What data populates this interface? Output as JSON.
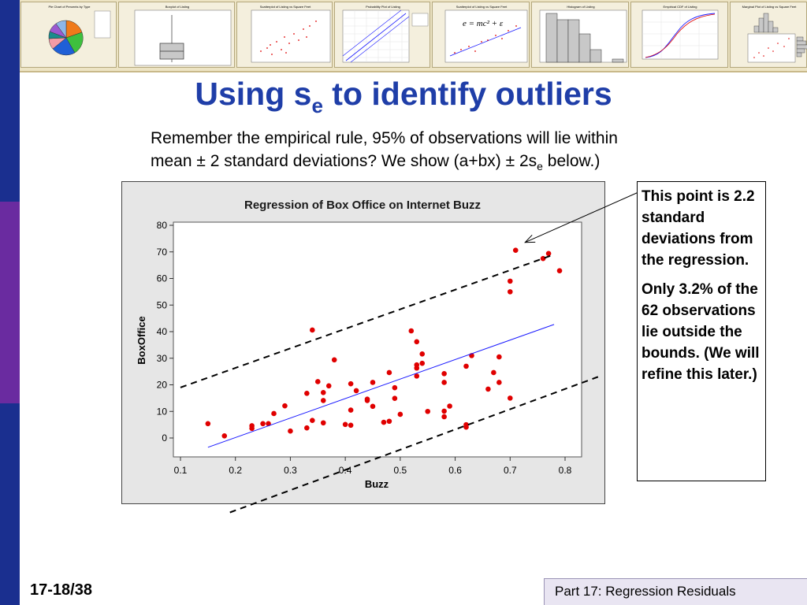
{
  "title": {
    "main": "Using s",
    "subscript": "e",
    "rest": " to identify outliers"
  },
  "body": {
    "line1": "Remember the empirical rule, 95% of observations will lie within",
    "line2_pre": "mean ± 2 standard deviations?  We show (a+bx) ± 2s",
    "line2_sub": "e",
    "line2_post": " below.)"
  },
  "callout": {
    "para1": "This point is 2.2 standard deviations from the regression.",
    "para2": "Only 3.2% of the 62 observations lie outside the bounds. (We will refine this later.)"
  },
  "slide_number": "17-18/38",
  "footer": "Part 17: Regression Residuals",
  "colors": {
    "title": "#1f3ea8",
    "points": "#e00000",
    "regression_line": "#1a1aff",
    "sidebar": [
      "#1a2f8f",
      "#6a2ba0",
      "#1a2f8f"
    ]
  },
  "chart_data": {
    "type": "scatter",
    "title": "Regression of Box Office on Internet Buzz",
    "xlabel": "Buzz",
    "ylabel": "BoxOffice",
    "xlim": [
      0.1,
      0.8
    ],
    "ylim": [
      0,
      80
    ],
    "xticks": [
      "0.1",
      "0.2",
      "0.3",
      "0.4",
      "0.5",
      "0.6",
      "0.7",
      "0.8"
    ],
    "yticks": [
      "0",
      "10",
      "20",
      "30",
      "40",
      "50",
      "60",
      "70",
      "80"
    ],
    "grid": false,
    "series": [
      {
        "points": [
          [
            0.15,
            5.4
          ],
          [
            0.18,
            0.8
          ],
          [
            0.23,
            3.6
          ],
          [
            0.23,
            4.6
          ],
          [
            0.25,
            5.4
          ],
          [
            0.26,
            5.4
          ],
          [
            0.27,
            9.2
          ],
          [
            0.29,
            12.1
          ],
          [
            0.3,
            2.6
          ],
          [
            0.33,
            3.8
          ],
          [
            0.33,
            16.8
          ],
          [
            0.34,
            6.6
          ],
          [
            0.34,
            40.6
          ],
          [
            0.35,
            21.2
          ],
          [
            0.36,
            5.7
          ],
          [
            0.36,
            14.1
          ],
          [
            0.36,
            17.1
          ],
          [
            0.37,
            19.6
          ],
          [
            0.38,
            29.4
          ],
          [
            0.4,
            5.1
          ],
          [
            0.41,
            10.5
          ],
          [
            0.41,
            4.8
          ],
          [
            0.41,
            20.4
          ],
          [
            0.42,
            17.8
          ],
          [
            0.44,
            14.6
          ],
          [
            0.44,
            14.1
          ],
          [
            0.45,
            20.9
          ],
          [
            0.45,
            11.9
          ],
          [
            0.47,
            5.9
          ],
          [
            0.48,
            6.3
          ],
          [
            0.48,
            24.6
          ],
          [
            0.49,
            14.9
          ],
          [
            0.49,
            18.9
          ],
          [
            0.5,
            8.9
          ],
          [
            0.52,
            40.3
          ],
          [
            0.53,
            36.2
          ],
          [
            0.53,
            27.5
          ],
          [
            0.53,
            26.3
          ],
          [
            0.53,
            23.3
          ],
          [
            0.54,
            28.1
          ],
          [
            0.54,
            31.6
          ],
          [
            0.55,
            10.0
          ],
          [
            0.58,
            24.2
          ],
          [
            0.58,
            20.9
          ],
          [
            0.58,
            10.1
          ],
          [
            0.58,
            8.0
          ],
          [
            0.59,
            12.0
          ],
          [
            0.62,
            27.0
          ],
          [
            0.62,
            5.0
          ],
          [
            0.62,
            4.1
          ],
          [
            0.63,
            31.0
          ],
          [
            0.66,
            18.4
          ],
          [
            0.67,
            24.6
          ],
          [
            0.68,
            20.9
          ],
          [
            0.68,
            30.5
          ],
          [
            0.7,
            59.0
          ],
          [
            0.7,
            55.0
          ],
          [
            0.7,
            15.0
          ],
          [
            0.71,
            70.6
          ],
          [
            0.76,
            67.5
          ],
          [
            0.77,
            69.4
          ],
          [
            0.79,
            62.9
          ]
        ]
      }
    ],
    "regression_line": {
      "x": [
        0.15,
        0.78
      ],
      "y": [
        -3.5,
        42.7
      ]
    },
    "bounds": {
      "upper": {
        "x": [
          0.1,
          0.78
        ],
        "y": [
          19.0,
          69.0
        ]
      },
      "lower": {
        "x": [
          0.19,
          0.86
        ],
        "y": [
          -28.0,
          23.0
        ]
      }
    },
    "annotation_target": [
      0.71,
      70.6
    ]
  },
  "thumbnails": [
    {
      "label": "Pie Chart of Percents by Type",
      "kind": "pie"
    },
    {
      "label": "Boxplot of Listing",
      "kind": "box"
    },
    {
      "label": "Scatterplot of Listing vs Square Feet",
      "kind": "scatter"
    },
    {
      "label": "Probability Plot of Listing",
      "kind": "prob"
    },
    {
      "label": "Scatterplot of Listing vs Square Feet",
      "kind": "formula",
      "formula": "e = mc² + ε"
    },
    {
      "label": "Histogram of Listing",
      "kind": "hist"
    },
    {
      "label": "Empirical CDF of Listing",
      "kind": "cdf"
    },
    {
      "label": "Marginal Plot of Listing vs Square Feet",
      "kind": "marginal"
    }
  ]
}
